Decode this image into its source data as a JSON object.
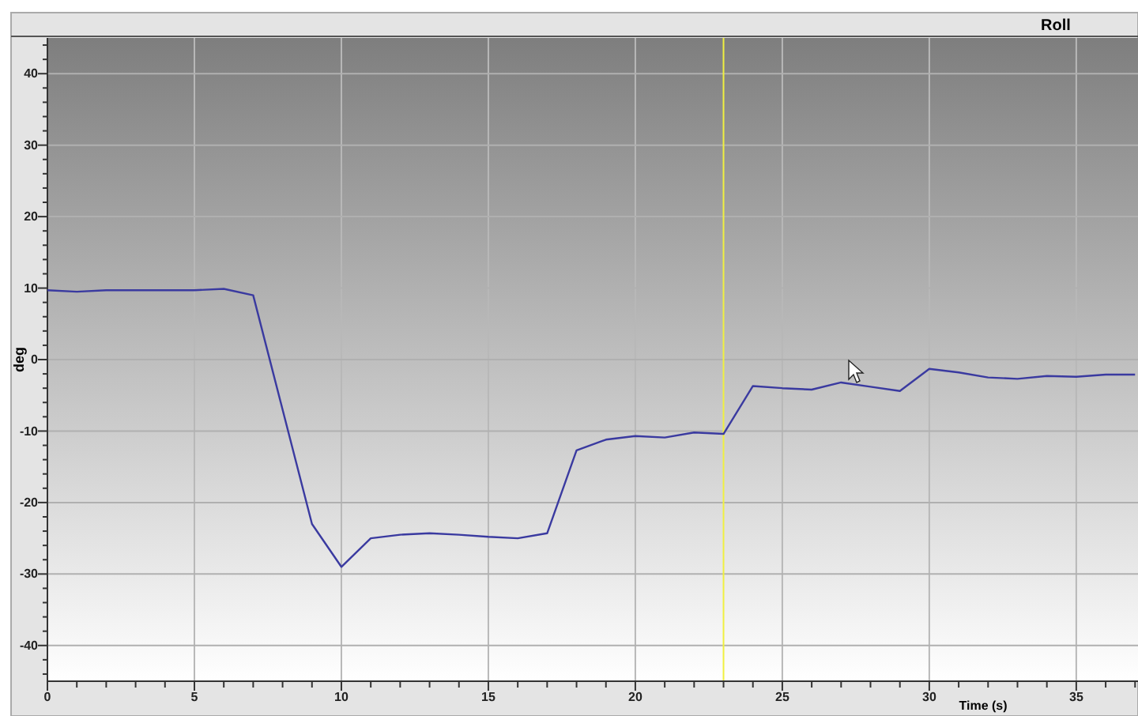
{
  "chart_data": {
    "type": "line",
    "title": "Roll",
    "xlabel": "Time (s)",
    "ylabel": "deg",
    "x": [
      0,
      1,
      2,
      3,
      4,
      5,
      6,
      7,
      9,
      10,
      11,
      12,
      13,
      14,
      15,
      16,
      17,
      18,
      19,
      20,
      21,
      22,
      23,
      24,
      25,
      26,
      27,
      28,
      29,
      30,
      31,
      32,
      33,
      34,
      35,
      36,
      37
    ],
    "series": [
      {
        "color": "#3a3aa0",
        "values": [
          9.7,
          9.5,
          9.7,
          9.7,
          9.7,
          9.7,
          9.9,
          9.0,
          -23,
          -29,
          -25,
          -24.5,
          -24.3,
          -24.5,
          -24.8,
          -25,
          -24.3,
          -12.7,
          -11.2,
          -10.7,
          -10.9,
          -10.2,
          -10.4,
          -3.7,
          -4,
          -4.2,
          -3.2,
          -3.8,
          -4.4,
          -1.3,
          -1.8,
          -2.5,
          -2.7,
          -2.3,
          -2.4,
          -2.1,
          -2.1
        ]
      }
    ],
    "xlim": [
      0,
      37.1
    ],
    "ylim": [
      -45,
      45
    ],
    "xticks": [
      0,
      {
        "value": 1,
        "label": null
      },
      {
        "value": 2,
        "label": null
      },
      {
        "value": 3,
        "label": null
      },
      {
        "value": 4,
        "label": null
      },
      5,
      {
        "value": 6,
        "label": null
      },
      {
        "value": 7,
        "label": null
      },
      {
        "value": 8,
        "label": null
      },
      {
        "value": 9,
        "label": null
      },
      10,
      {
        "value": 11,
        "label": null
      },
      {
        "value": 12,
        "label": null
      },
      {
        "value": 13,
        "label": null
      },
      {
        "value": 14,
        "label": null
      },
      15,
      {
        "value": 16,
        "label": null
      },
      {
        "value": 17,
        "label": null
      },
      {
        "value": 18,
        "label": null
      },
      {
        "value": 19,
        "label": null
      },
      20,
      {
        "value": 21,
        "label": null
      },
      {
        "value": 22,
        "label": null
      },
      {
        "value": 23,
        "label": null
      },
      {
        "value": 24,
        "label": null
      },
      25,
      {
        "value": 26,
        "label": null
      },
      {
        "value": 27,
        "label": null
      },
      {
        "value": 28,
        "label": null
      },
      {
        "value": 29,
        "label": null
      },
      30,
      {
        "value": 31,
        "label": null
      },
      {
        "value": 32,
        "label": null
      },
      {
        "value": 33,
        "label": null
      },
      {
        "value": 34,
        "label": null
      },
      35,
      {
        "value": 36,
        "label": null
      },
      {
        "value": 37,
        "label": null
      }
    ],
    "yticks": [
      {
        "value": -44,
        "label": null
      },
      {
        "value": -42,
        "label": null
      },
      -40,
      {
        "value": -38,
        "label": null
      },
      {
        "value": -36,
        "label": null
      },
      {
        "value": -34,
        "label": null
      },
      {
        "value": -32,
        "label": null
      },
      -30,
      {
        "value": -28,
        "label": null
      },
      {
        "value": -26,
        "label": null
      },
      {
        "value": -24,
        "label": null
      },
      {
        "value": -22,
        "label": null
      },
      -20,
      {
        "value": -18,
        "label": null
      },
      {
        "value": -16,
        "label": null
      },
      {
        "value": -14,
        "label": null
      },
      {
        "value": -12,
        "label": null
      },
      -10,
      {
        "value": -8,
        "label": null
      },
      {
        "value": -6,
        "label": null
      },
      {
        "value": -4,
        "label": null
      },
      {
        "value": -2,
        "label": null
      },
      0,
      {
        "value": 2,
        "label": null
      },
      {
        "value": 4,
        "label": null
      },
      {
        "value": 6,
        "label": null
      },
      {
        "value": 8,
        "label": null
      },
      10,
      {
        "value": 12,
        "label": null
      },
      {
        "value": 14,
        "label": null
      },
      {
        "value": 16,
        "label": null
      },
      {
        "value": 18,
        "label": null
      },
      20,
      {
        "value": 22,
        "label": null
      },
      {
        "value": 24,
        "label": null
      },
      {
        "value": 26,
        "label": null
      },
      {
        "value": 28,
        "label": null
      },
      30,
      {
        "value": 32,
        "label": null
      },
      {
        "value": 34,
        "label": null
      },
      {
        "value": 36,
        "label": null
      },
      {
        "value": 38,
        "label": null
      },
      40,
      {
        "value": 42,
        "label": null
      },
      {
        "value": 44,
        "label": null
      }
    ],
    "grid": true,
    "ref_lines": [
      {
        "axis": "x",
        "value": 23,
        "color": "#f0f040"
      }
    ]
  }
}
